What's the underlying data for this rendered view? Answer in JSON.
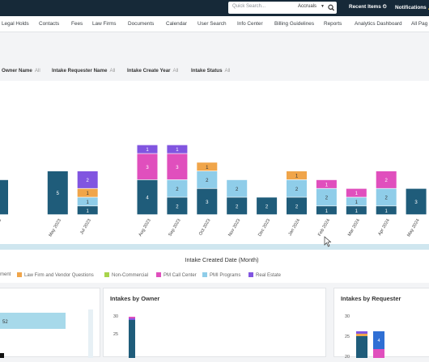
{
  "topbar": {
    "search_placeholder": "Quick Search...",
    "search_scope": "Accruals",
    "recent_items": "Recent Items",
    "notifications": "Notifications"
  },
  "nav": {
    "items": [
      "Legal Holds",
      "Contacts",
      "Fees",
      "Law Firms",
      "Documents",
      "Calendar",
      "User Search",
      "Info Center",
      "Billing Guidelines",
      "Reports",
      "Analytics Dashboard",
      "All Pag"
    ]
  },
  "filters": [
    {
      "label": "Owner Name",
      "value": "All"
    },
    {
      "label": "Intake Requester Name",
      "value": "All"
    },
    {
      "label": "Intake Create Year",
      "value": "All"
    },
    {
      "label": "Intake Status",
      "value": "All"
    }
  ],
  "chart_data": {
    "type": "bar",
    "stacked": true,
    "xlabel": "Intake Created Date (Month)",
    "categories": [
      "Apr 2023",
      "",
      "May 2023",
      "Jul 2023",
      "",
      "Aug 2023",
      "Sep 2023",
      "Oct 2023",
      "Nov 2023",
      "Dec 2023",
      "Jan 2024",
      "Feb 2024",
      "Mar 2024",
      "Apr 2024",
      "May 2024",
      "Jun 2024",
      "Jul 2024"
    ],
    "legend": [
      "ment",
      "Law Firm and Vendor Questions",
      "Non-Commercial",
      "PM Call Center",
      "PMI Programs",
      "Real Estate"
    ],
    "series": [
      {
        "name": "ment",
        "color": "#1f5c7a",
        "values": [
          4,
          null,
          5,
          1,
          null,
          4,
          2,
          3,
          2,
          2,
          2,
          1,
          1,
          1,
          3,
          2,
          null
        ]
      },
      {
        "name": "Law Firm and Vendor Questions",
        "color": "#f0a54a",
        "values": [
          null,
          null,
          null,
          1,
          null,
          null,
          null,
          1,
          null,
          null,
          1,
          null,
          null,
          null,
          null,
          null,
          null
        ]
      },
      {
        "name": "Non-Commercial",
        "color": "#a8d44c",
        "values": [
          null,
          null,
          null,
          null,
          null,
          null,
          null,
          null,
          null,
          null,
          null,
          null,
          null,
          null,
          null,
          null,
          null
        ]
      },
      {
        "name": "PM Call Center",
        "color": "#e04fbd",
        "values": [
          null,
          null,
          null,
          null,
          null,
          3,
          3,
          null,
          null,
          null,
          null,
          1,
          1,
          2,
          null,
          null,
          null
        ]
      },
      {
        "name": "PMI Programs",
        "color": "#8fcde9",
        "values": [
          null,
          null,
          null,
          1,
          null,
          null,
          2,
          2,
          2,
          null,
          2,
          2,
          1,
          2,
          null,
          2,
          1
        ]
      },
      {
        "name": "Real Estate",
        "color": "#8155e0",
        "values": [
          null,
          null,
          null,
          2,
          null,
          1,
          1,
          null,
          null,
          null,
          null,
          null,
          null,
          null,
          null,
          null,
          null
        ]
      }
    ]
  },
  "cards": {
    "owner_title": "Intakes by Owner",
    "requester_title": "Intakes by Requester",
    "owner_ticks": [
      "30",
      "25"
    ],
    "requester_ticks": [
      "30",
      "25",
      "20"
    ],
    "left_value": "52"
  }
}
